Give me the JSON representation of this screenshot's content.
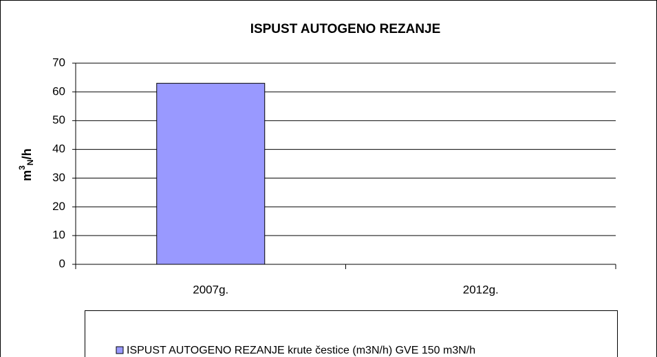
{
  "chart_data": {
    "type": "bar",
    "title": "ISPUST AUTOGENO REZANJE",
    "y_label": {
      "base": "m",
      "sup": "3",
      "sub": "N",
      "rest": "/h"
    },
    "categories": [
      "2007g.",
      "2012g."
    ],
    "series": [
      {
        "name": "ISPUST AUTOGENO REZANJE krute čestice (m3N/h) GVE 150 m3N/h",
        "color": "#9999ff",
        "values": [
          63,
          0
        ]
      }
    ],
    "ylim": [
      0,
      70
    ],
    "yticks": [
      0,
      10,
      20,
      30,
      40,
      50,
      60,
      70
    ],
    "grid": true,
    "legend": "bottom"
  }
}
